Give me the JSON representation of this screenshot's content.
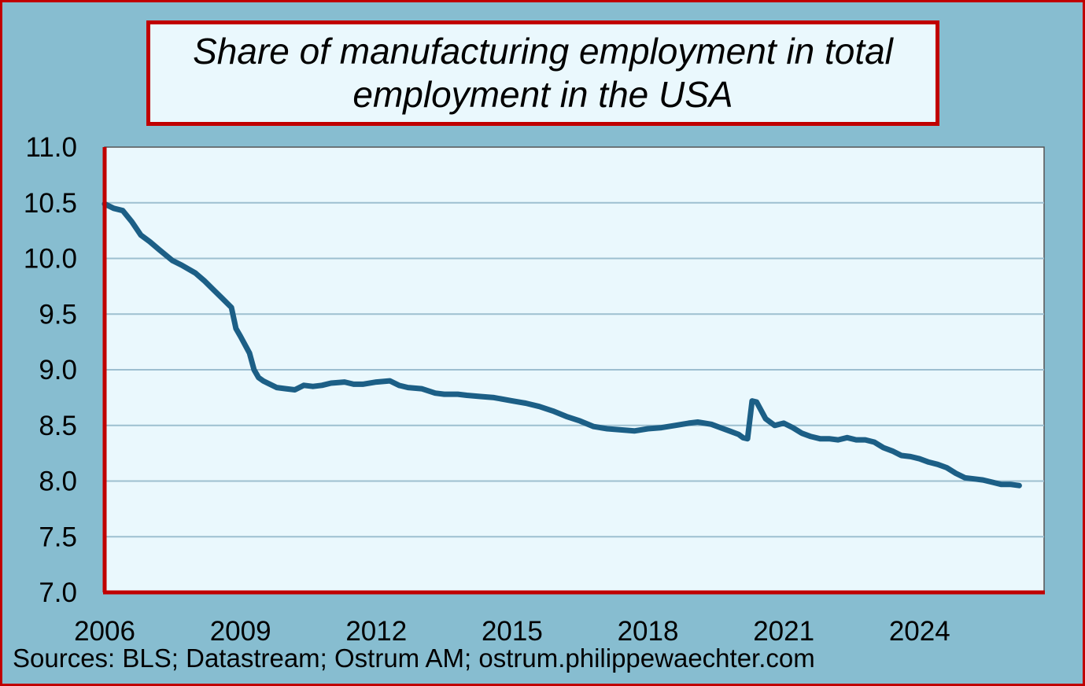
{
  "chart_data": {
    "type": "line",
    "title": "Share of manufacturing employment in total employment in the USA",
    "xlabel": "",
    "ylabel": "",
    "ylim": [
      7.0,
      11.0
    ],
    "xlim": [
      2006.0,
      2026.75
    ],
    "y_ticks": [
      "7.0",
      "7.5",
      "8.0",
      "8.5",
      "9.0",
      "9.5",
      "10.0",
      "10.5",
      "11.0"
    ],
    "x_ticks": [
      "2006",
      "2009",
      "2012",
      "2015",
      "2018",
      "2021",
      "2024"
    ],
    "grid": true,
    "line_color": "#1c5f86",
    "series": [
      {
        "name": "Share of manufacturing employment",
        "x": [
          2006.0,
          2006.2,
          2006.4,
          2006.6,
          2006.8,
          2007.0,
          2007.2,
          2007.5,
          2007.7,
          2008.0,
          2008.2,
          2008.4,
          2008.6,
          2008.8,
          2008.9,
          2009.0,
          2009.2,
          2009.3,
          2009.4,
          2009.5,
          2009.6,
          2009.8,
          2010.0,
          2010.2,
          2010.4,
          2010.6,
          2010.8,
          2011.0,
          2011.3,
          2011.5,
          2011.7,
          2012.0,
          2012.3,
          2012.5,
          2012.7,
          2013.0,
          2013.3,
          2013.5,
          2013.8,
          2014.0,
          2014.3,
          2014.6,
          2015.0,
          2015.3,
          2015.6,
          2015.9,
          2016.2,
          2016.5,
          2016.8,
          2017.1,
          2017.4,
          2017.7,
          2018.0,
          2018.3,
          2018.6,
          2018.9,
          2019.1,
          2019.4,
          2019.6,
          2019.8,
          2020.0,
          2020.1,
          2020.2,
          2020.3,
          2020.4,
          2020.6,
          2020.8,
          2021.0,
          2021.2,
          2021.4,
          2021.6,
          2021.8,
          2022.0,
          2022.2,
          2022.4,
          2022.6,
          2022.8,
          2023.0,
          2023.2,
          2023.4,
          2023.6,
          2023.8,
          2024.0,
          2024.2,
          2024.4,
          2024.6,
          2024.8,
          2025.0,
          2025.2,
          2025.4,
          2025.6,
          2025.8,
          2026.0,
          2026.2
        ],
        "values": [
          10.49,
          10.45,
          10.43,
          10.33,
          10.21,
          10.15,
          10.08,
          9.98,
          9.94,
          9.87,
          9.8,
          9.72,
          9.64,
          9.56,
          9.37,
          9.3,
          9.15,
          9.0,
          8.93,
          8.9,
          8.88,
          8.84,
          8.83,
          8.82,
          8.86,
          8.85,
          8.86,
          8.88,
          8.89,
          8.87,
          8.87,
          8.89,
          8.9,
          8.86,
          8.84,
          8.83,
          8.79,
          8.78,
          8.78,
          8.77,
          8.76,
          8.75,
          8.72,
          8.7,
          8.67,
          8.63,
          8.58,
          8.54,
          8.49,
          8.47,
          8.46,
          8.45,
          8.47,
          8.48,
          8.5,
          8.52,
          8.53,
          8.51,
          8.48,
          8.45,
          8.42,
          8.39,
          8.38,
          8.72,
          8.71,
          8.56,
          8.5,
          8.52,
          8.48,
          8.43,
          8.4,
          8.38,
          8.38,
          8.37,
          8.39,
          8.37,
          8.37,
          8.35,
          8.3,
          8.27,
          8.23,
          8.22,
          8.2,
          8.17,
          8.15,
          8.12,
          8.07,
          8.03,
          8.02,
          8.01,
          7.99,
          7.97,
          7.97,
          7.96
        ]
      }
    ]
  },
  "title_line1": "Share of manufacturing employment in total",
  "title_line2": "employment in the USA",
  "source": "Sources: BLS; Datastream; Ostrum AM; ostrum.philippewaechter.com",
  "colors": {
    "background": "#87bdd0",
    "plot_bg": "#eaf8fd",
    "frame": "#c00000",
    "grid": "#9dbfd0"
  }
}
